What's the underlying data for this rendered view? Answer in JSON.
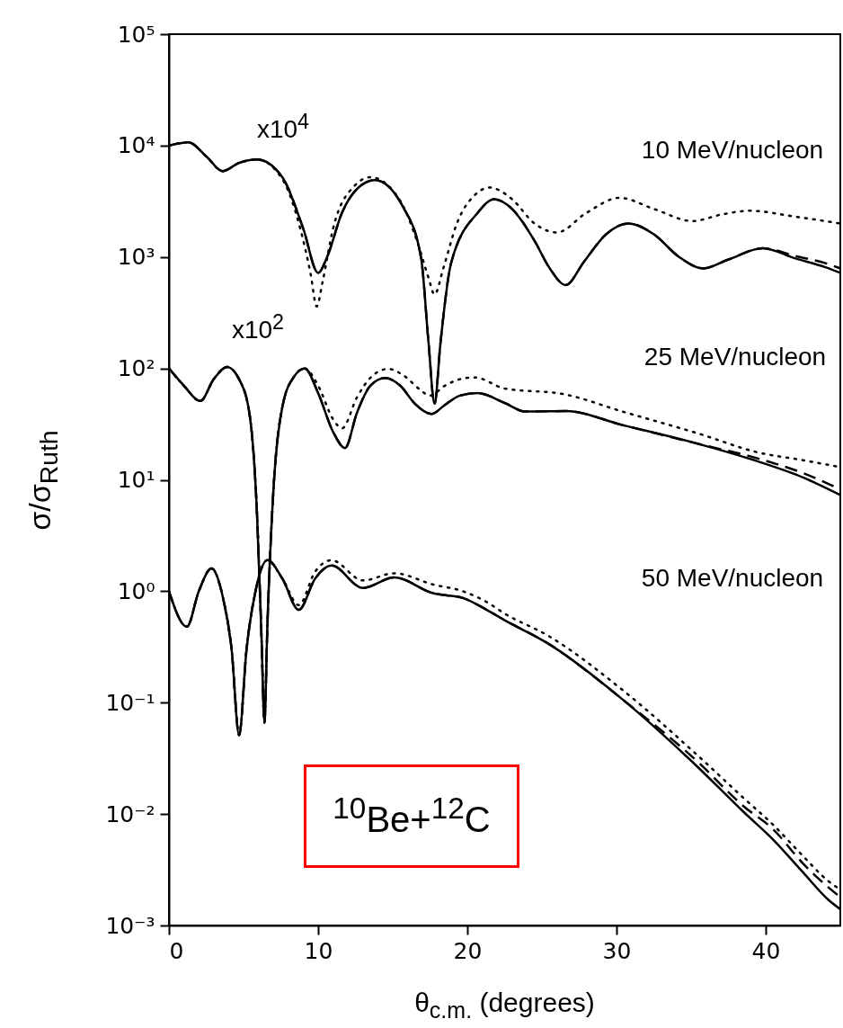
{
  "chart_data": {
    "type": "line",
    "xlabel": "θ$_{c.m.}$ (degrees)",
    "ylabel": "σ/σ$_{Ruth}$",
    "xlim": [
      0,
      45
    ],
    "xticks": [
      0,
      10,
      20,
      30,
      40
    ],
    "ylim": [
      0.001,
      100000
    ],
    "yticks": [
      {
        "value": 0.001,
        "label": "10⁻³"
      },
      {
        "value": 0.01,
        "label": "10⁻²"
      },
      {
        "value": 0.1,
        "label": "10⁻¹"
      },
      {
        "value": 1,
        "label": "10⁰"
      },
      {
        "value": 10,
        "label": "10¹"
      },
      {
        "value": 100,
        "label": "10²"
      },
      {
        "value": 1000,
        "label": "10³"
      },
      {
        "value": 10000,
        "label": "10⁴"
      },
      {
        "value": 100000,
        "label": "10⁵"
      }
    ],
    "log": true,
    "grid": false,
    "series": [
      {
        "color": "#000000",
        "line_style": "dotted",
        "x": [
          0,
          1.3,
          2.5,
          3.6,
          4.7,
          5.9,
          7.6,
          8.8,
          9.5,
          9.9,
          10.3,
          11.0,
          12.4,
          13.5,
          15.5,
          16.7,
          17.4,
          17.8,
          18.4,
          19.3,
          20.5,
          21.5,
          23,
          24.5,
          26,
          28,
          30.2,
          32.5,
          35.1,
          37,
          38.9,
          42,
          45
        ],
        "values": [
          10000,
          10700,
          8000,
          5900,
          7000,
          7500,
          5000,
          1800,
          700,
          360,
          600,
          1800,
          4300,
          5200,
          3200,
          1300,
          650,
          460,
          800,
          2000,
          3600,
          4200,
          3300,
          2000,
          1660,
          2500,
          3400,
          2700,
          2100,
          2400,
          2600,
          2300,
          2000
        ]
      },
      {
        "color": "#000000",
        "line_style": "dashed",
        "x": [
          0,
          1.3,
          2.5,
          3.6,
          4.7,
          5.9,
          7.6,
          9.0,
          10.0,
          10.6,
          11.6,
          12.7,
          13.8,
          15.7,
          16.9,
          17.4,
          17.8,
          18.2,
          18.9,
          20.7,
          21.8,
          23,
          24.5,
          25.5,
          26.6,
          27.8,
          29.3,
          30.8,
          32.5,
          34.2,
          35.8,
          37.5,
          39.8,
          42,
          44,
          45
        ],
        "values": [
          10000,
          10700,
          8000,
          5900,
          7000,
          7500,
          5200,
          1800,
          720,
          1000,
          2500,
          4200,
          4900,
          2800,
          980,
          170,
          48,
          170,
          870,
          2500,
          3300,
          2700,
          1400,
          800,
          560,
          900,
          1600,
          2000,
          1600,
          1000,
          790,
          950,
          1200,
          1020,
          880,
          790
        ]
      },
      {
        "color": "#000000",
        "line_style": "solid",
        "x": [
          0,
          1.3,
          2.5,
          3.6,
          4.7,
          5.9,
          7.6,
          9.0,
          10.0,
          10.6,
          11.6,
          12.7,
          13.8,
          15.7,
          16.9,
          17.4,
          17.8,
          18.2,
          18.9,
          20.7,
          21.8,
          23,
          24.5,
          25.5,
          26.6,
          27.8,
          29.3,
          30.8,
          32.5,
          34.2,
          35.8,
          37.5,
          39.8,
          42,
          44,
          45
        ],
        "values": [
          10000,
          10700,
          8000,
          5900,
          7000,
          7500,
          5200,
          1800,
          720,
          1000,
          2500,
          4200,
          4900,
          2800,
          980,
          170,
          48,
          170,
          870,
          2500,
          3300,
          2700,
          1400,
          800,
          560,
          900,
          1600,
          2000,
          1600,
          1000,
          790,
          950,
          1200,
          970,
          810,
          720
        ]
      },
      {
        "color": "#000000",
        "line_style": "dotted",
        "x": [
          0,
          1.0,
          2.1,
          3.0,
          3.9,
          4.7,
          5.4,
          5.9,
          6.2,
          6.4,
          6.6,
          7.0,
          7.6,
          8.4,
          9.1,
          10.0,
          11.0,
          11.6,
          12.6,
          13.6,
          14.7,
          15.8,
          16.8,
          17.5,
          18.5,
          19.5,
          20.5,
          22.5,
          26.4,
          30.4,
          35.5,
          39.5,
          42.5,
          45
        ],
        "values": [
          100,
          70,
          51,
          80,
          103,
          80,
          39,
          5,
          0.4,
          0.066,
          0.5,
          8,
          45,
          85,
          100,
          70,
          35,
          29,
          55,
          85,
          99,
          85,
          65,
          57,
          70,
          80,
          83,
          66,
          59,
          41,
          26,
          17.6,
          15,
          13
        ]
      },
      {
        "color": "#000000",
        "line_style": "dashed",
        "x": [
          0,
          1.0,
          2.1,
          3.0,
          3.9,
          4.7,
          5.4,
          5.9,
          6.2,
          6.4,
          6.6,
          7.0,
          7.6,
          8.4,
          9.1,
          10.0,
          11.0,
          11.8,
          12.6,
          13.5,
          14.5,
          15.5,
          16.5,
          17.6,
          18.5,
          19.5,
          20.7,
          22.5,
          23.9,
          26.6,
          30.4,
          35.5,
          39.5,
          42.5,
          45
        ],
        "values": [
          100,
          70,
          51,
          80,
          103,
          80,
          39,
          5,
          0.4,
          0.066,
          0.5,
          8,
          45,
          85,
          100,
          60,
          27,
          19.3,
          40,
          70,
          82,
          70,
          48,
          39,
          47,
          57,
          60,
          49,
          41,
          41.4,
          31,
          21,
          15.5,
          11.5,
          8.2
        ]
      },
      {
        "color": "#000000",
        "line_style": "solid",
        "x": [
          0,
          1.0,
          2.1,
          3.0,
          3.9,
          4.7,
          5.4,
          5.9,
          6.2,
          6.4,
          6.6,
          7.0,
          7.6,
          8.4,
          9.1,
          10.0,
          11.0,
          11.8,
          12.6,
          13.5,
          14.5,
          15.5,
          16.5,
          17.6,
          18.5,
          19.5,
          20.7,
          22.5,
          23.9,
          26.6,
          30.4,
          35.5,
          39.5,
          42.5,
          45
        ],
        "values": [
          100,
          70,
          51,
          80,
          103,
          80,
          39,
          5,
          0.4,
          0.066,
          0.5,
          8,
          45,
          85,
          100,
          60,
          27,
          19.3,
          40,
          70,
          82,
          70,
          48,
          39,
          47,
          57,
          60,
          49,
          41,
          41.4,
          31,
          21,
          14.6,
          10.5,
          7.3
        ]
      },
      {
        "color": "#000000",
        "line_style": "dotted",
        "x": [
          0,
          1.2,
          2.0,
          2.85,
          3.6,
          4.2,
          4.7,
          5.2,
          5.8,
          6.6,
          7.6,
          8.7,
          9.8,
          10.9,
          13.0,
          15.1,
          17.7,
          19.7,
          21.3,
          22.5,
          25.4,
          30.4,
          35.5,
          38.5,
          40.5,
          42.5,
          44.2,
          45
        ],
        "values": [
          1.0,
          0.48,
          1.0,
          1.6,
          0.9,
          0.3,
          0.051,
          0.3,
          1.0,
          1.9,
          1.3,
          0.75,
          1.5,
          1.9,
          1.25,
          1.45,
          1.15,
          1.0,
          0.8,
          0.63,
          0.4,
          0.13,
          0.033,
          0.014,
          0.008,
          0.0042,
          0.0025,
          0.0021
        ]
      },
      {
        "color": "#000000",
        "line_style": "dashed",
        "x": [
          0,
          1.2,
          2.0,
          2.85,
          3.6,
          4.2,
          4.7,
          5.2,
          5.8,
          6.6,
          7.6,
          8.7,
          9.8,
          10.9,
          13.0,
          15.1,
          17.7,
          19.7,
          21.3,
          22.5,
          25.4,
          30.4,
          35.5,
          38.5,
          40.5,
          42.5,
          44.2,
          45
        ],
        "values": [
          1.0,
          0.48,
          1.0,
          1.6,
          0.9,
          0.3,
          0.051,
          0.3,
          1.0,
          1.9,
          1.3,
          0.68,
          1.3,
          1.7,
          1.07,
          1.33,
          0.96,
          0.87,
          0.68,
          0.55,
          0.34,
          0.107,
          0.029,
          0.0118,
          0.0073,
          0.0036,
          0.0022,
          0.0018
        ]
      },
      {
        "color": "#000000",
        "line_style": "solid",
        "x": [
          0,
          1.2,
          2.0,
          2.85,
          3.6,
          4.2,
          4.7,
          5.2,
          5.8,
          6.6,
          7.6,
          8.7,
          9.8,
          10.9,
          13.0,
          15.1,
          17.7,
          19.7,
          21.3,
          22.5,
          25.4,
          30.4,
          35.5,
          38.5,
          40.5,
          42.5,
          44.2,
          45
        ],
        "values": [
          1.0,
          0.48,
          1.0,
          1.6,
          0.9,
          0.3,
          0.051,
          0.3,
          1.0,
          1.9,
          1.3,
          0.68,
          1.3,
          1.7,
          1.07,
          1.33,
          0.96,
          0.87,
          0.68,
          0.55,
          0.34,
          0.107,
          0.026,
          0.0105,
          0.0059,
          0.003,
          0.0017,
          0.0014
        ]
      }
    ],
    "annotations": [
      "x10$^{4}$",
      "10 MeV/nucleon",
      "x10$^{2}$",
      "25 MeV/nucleon",
      "50 MeV/nucleon",
      "$^{10}$Be+$^{12}$C"
    ]
  }
}
